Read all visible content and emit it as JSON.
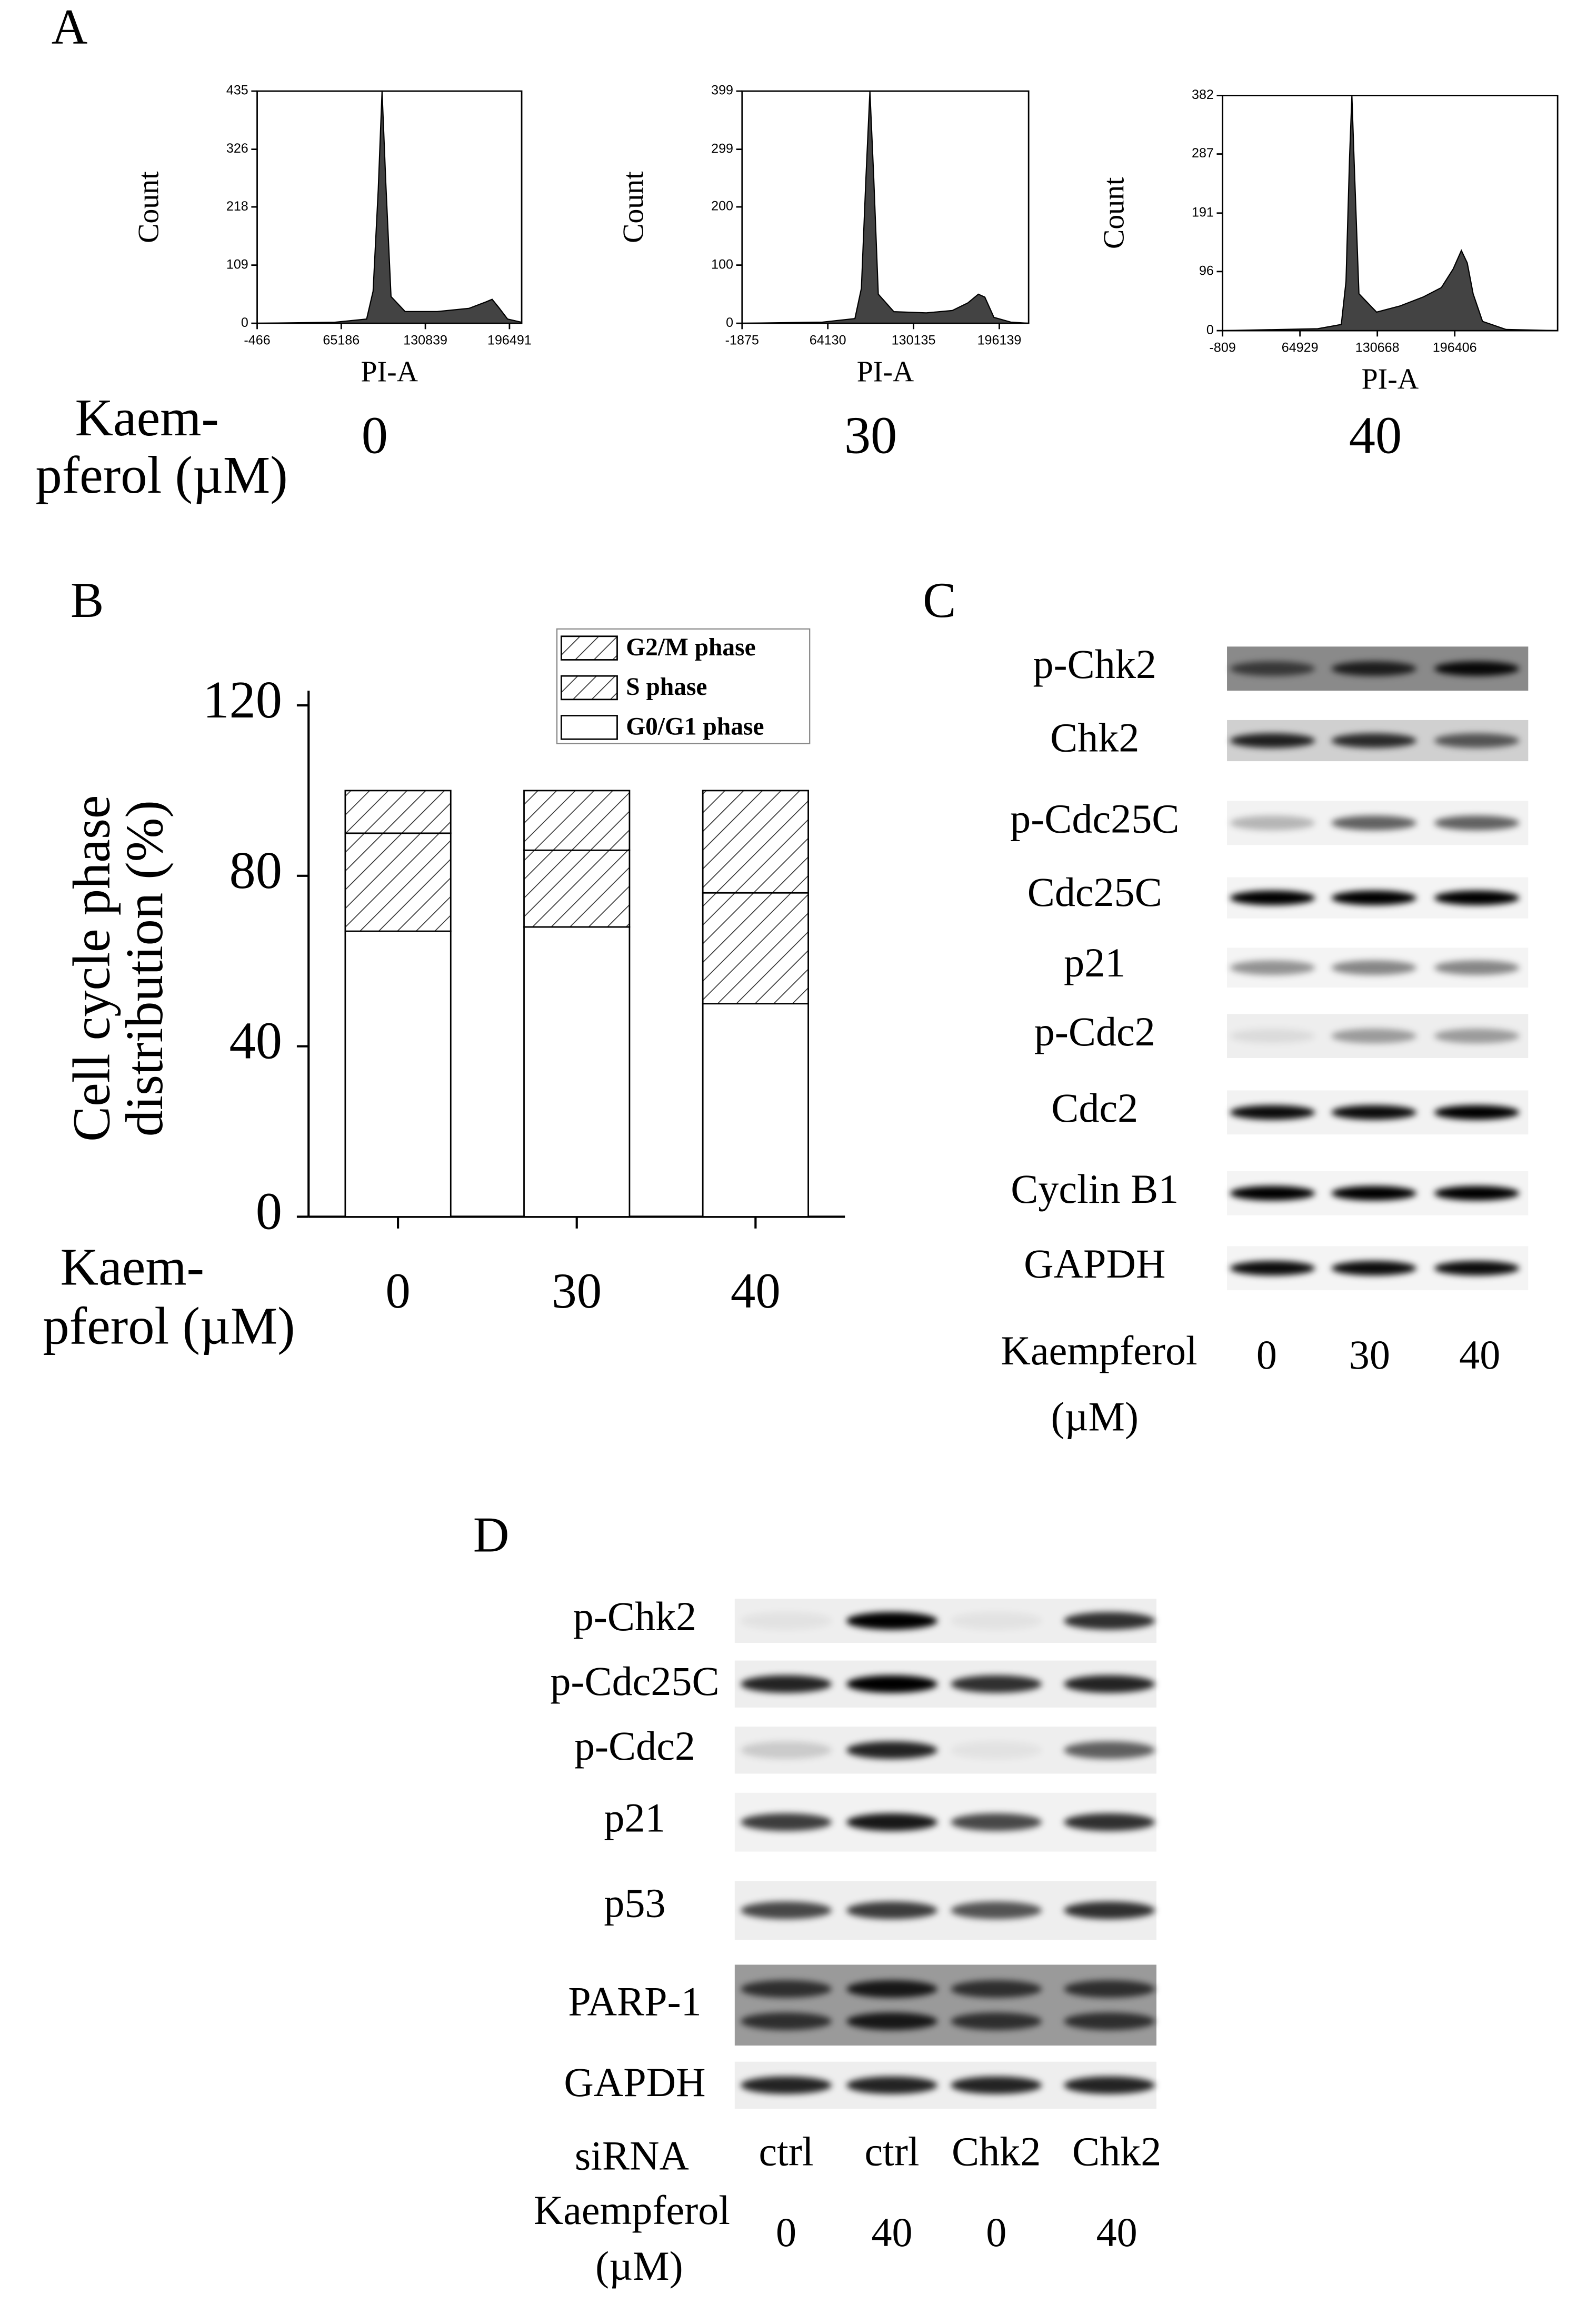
{
  "panel_a": {
    "label": "A",
    "dose_label": [
      "Kaem-",
      "pferol (µM)"
    ]
  },
  "panel_b": {
    "label": "B"
  },
  "chart_data": [
    {
      "type": "area",
      "ylabel": "Count",
      "xlabel": "PI-A",
      "caption": "0",
      "color": "#222222",
      "xlim": [
        -466,
        206000
      ],
      "ylim": [
        0,
        435
      ],
      "xticks": [
        -466,
        65186,
        130839,
        196491
      ],
      "yticks": [
        0,
        109,
        218,
        326,
        435
      ],
      "x": [
        -466,
        60000,
        85000,
        90000,
        94000,
        97000,
        100000,
        104000,
        115000,
        140000,
        165000,
        178000,
        183000,
        188000,
        195000,
        206000
      ],
      "values": [
        0,
        2,
        8,
        60,
        250,
        435,
        260,
        50,
        22,
        22,
        28,
        40,
        45,
        30,
        8,
        2
      ]
    },
    {
      "type": "area",
      "ylabel": "Count",
      "xlabel": "PI-A",
      "caption": "30",
      "color": "#222222",
      "xlim": [
        -1875,
        218700
      ],
      "ylim": [
        0,
        399
      ],
      "xticks": [
        -1875,
        64130,
        130135,
        196139
      ],
      "yticks": [
        0,
        100,
        200,
        299,
        399
      ],
      "x": [
        -1875,
        60000,
        85000,
        90000,
        93500,
        96500,
        99500,
        103000,
        115000,
        140000,
        160000,
        172000,
        180000,
        185000,
        192000,
        205000,
        218700
      ],
      "values": [
        0,
        2,
        8,
        60,
        250,
        399,
        250,
        50,
        20,
        18,
        22,
        35,
        50,
        45,
        10,
        2,
        0
      ]
    },
    {
      "type": "area",
      "ylabel": "Count",
      "xlabel": "PI-A",
      "caption": "40",
      "color": "#222222",
      "xlim": [
        -809,
        283800
      ],
      "ylim": [
        0,
        382
      ],
      "xticks": [
        -809,
        64929,
        130668,
        196406
      ],
      "yticks": [
        0,
        96,
        191,
        287,
        382
      ],
      "x": [
        -809,
        80000,
        100000,
        104000,
        107000,
        109000,
        111000,
        115000,
        130000,
        150000,
        170000,
        185000,
        195000,
        202000,
        207000,
        212000,
        220000,
        240000,
        283800
      ],
      "values": [
        0,
        3,
        10,
        80,
        280,
        382,
        270,
        60,
        30,
        40,
        55,
        70,
        100,
        130,
        110,
        60,
        15,
        2,
        0
      ]
    },
    {
      "type": "stacked_bar",
      "ylabel": [
        "Cell cycle phase",
        "distribution (%)"
      ],
      "xlabel": [
        "Kaem-",
        "pferol (µM)"
      ],
      "categories": [
        "0",
        "30",
        "40"
      ],
      "ylim": [
        0,
        120
      ],
      "yticks": [
        0,
        40,
        80,
        120
      ],
      "series": [
        {
          "name": "G0/G1 phase",
          "color": "#ffffff",
          "hatch": false,
          "values": [
            67,
            68,
            50
          ]
        },
        {
          "name": "S phase",
          "color": "#ffffff",
          "hatch": true,
          "values": [
            23,
            18,
            26
          ]
        },
        {
          "name": "G2/M phase",
          "color": "#ffffff",
          "hatch": true,
          "values": [
            10,
            14,
            24
          ]
        }
      ]
    }
  ],
  "panel_c": {
    "label": "C",
    "rows": [
      "p-Chk2",
      "Chk2",
      "p-Cdc25C",
      "Cdc25C",
      "p21",
      "p-Cdc2",
      "Cdc2",
      "Cyclin B1",
      "GAPDH"
    ],
    "dose_label": [
      "Kaempferol",
      "(µM)"
    ],
    "lanes": [
      "0",
      "30",
      "40"
    ]
  },
  "panel_d": {
    "label": "D",
    "rows": [
      "p-Chk2",
      "p-Cdc25C",
      "p-Cdc2",
      "p21",
      "p53",
      "PARP-1",
      "GAPDH"
    ],
    "sirna_label": "siRNA",
    "sirna_lanes": [
      "ctrl",
      "ctrl",
      "Chk2",
      "Chk2"
    ],
    "dose_label": [
      "Kaempferol",
      "(µM)"
    ],
    "dose_lanes": [
      "0",
      "40",
      "0",
      "40"
    ]
  }
}
